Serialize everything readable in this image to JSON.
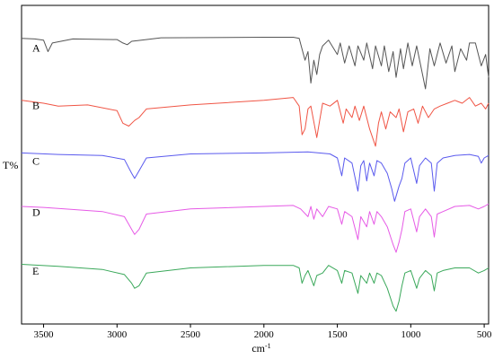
{
  "chart_data": {
    "type": "line",
    "title": "",
    "xlabel": "cm",
    "xlabel_superscript": "-1",
    "ylabel": "T%",
    "xlim": [
      3650,
      470
    ],
    "x_ticks": [
      3500,
      3000,
      2500,
      2000,
      1500,
      1000,
      500
    ],
    "grid": false,
    "series": [
      {
        "name": "A",
        "color": "#555555",
        "offset": 0.9,
        "scale": 0.18,
        "points": [
          [
            3650,
            0.98
          ],
          [
            3560,
            0.97
          ],
          [
            3500,
            0.95
          ],
          [
            3470,
            0.75
          ],
          [
            3440,
            0.9
          ],
          [
            3300,
            0.97
          ],
          [
            3000,
            0.96
          ],
          [
            2960,
            0.9
          ],
          [
            2930,
            0.87
          ],
          [
            2900,
            0.93
          ],
          [
            2860,
            0.94
          ],
          [
            2700,
            0.99
          ],
          [
            2000,
            1.0
          ],
          [
            1800,
            1.0
          ],
          [
            1760,
            0.98
          ],
          [
            1720,
            0.6
          ],
          [
            1700,
            0.75
          ],
          [
            1680,
            0.2
          ],
          [
            1660,
            0.6
          ],
          [
            1640,
            0.35
          ],
          [
            1620,
            0.7
          ],
          [
            1600,
            0.85
          ],
          [
            1560,
            0.95
          ],
          [
            1500,
            0.7
          ],
          [
            1480,
            0.9
          ],
          [
            1450,
            0.55
          ],
          [
            1420,
            0.85
          ],
          [
            1380,
            0.5
          ],
          [
            1360,
            0.85
          ],
          [
            1320,
            0.6
          ],
          [
            1300,
            0.9
          ],
          [
            1260,
            0.45
          ],
          [
            1240,
            0.85
          ],
          [
            1200,
            0.5
          ],
          [
            1180,
            0.85
          ],
          [
            1150,
            0.4
          ],
          [
            1120,
            0.75
          ],
          [
            1100,
            0.3
          ],
          [
            1070,
            0.8
          ],
          [
            1050,
            0.45
          ],
          [
            1020,
            0.9
          ],
          [
            990,
            0.5
          ],
          [
            960,
            0.85
          ],
          [
            900,
            0.1
          ],
          [
            870,
            0.8
          ],
          [
            840,
            0.5
          ],
          [
            800,
            0.9
          ],
          [
            760,
            0.55
          ],
          [
            720,
            0.85
          ],
          [
            700,
            0.4
          ],
          [
            660,
            0.8
          ],
          [
            620,
            0.6
          ],
          [
            600,
            0.9
          ],
          [
            560,
            0.9
          ],
          [
            520,
            0.5
          ],
          [
            490,
            0.7
          ],
          [
            470,
            0.3
          ]
        ]
      },
      {
        "name": "B",
        "color": "#f05545",
        "offset": 0.72,
        "scale": 0.18,
        "points": [
          [
            3650,
            0.9
          ],
          [
            3500,
            0.85
          ],
          [
            3400,
            0.8
          ],
          [
            3200,
            0.82
          ],
          [
            3000,
            0.72
          ],
          [
            2960,
            0.5
          ],
          [
            2920,
            0.45
          ],
          [
            2880,
            0.55
          ],
          [
            2850,
            0.6
          ],
          [
            2800,
            0.75
          ],
          [
            2500,
            0.82
          ],
          [
            2000,
            0.9
          ],
          [
            1800,
            0.95
          ],
          [
            1760,
            0.8
          ],
          [
            1740,
            0.3
          ],
          [
            1720,
            0.4
          ],
          [
            1700,
            0.75
          ],
          [
            1680,
            0.8
          ],
          [
            1640,
            0.25
          ],
          [
            1620,
            0.55
          ],
          [
            1600,
            0.85
          ],
          [
            1550,
            0.8
          ],
          [
            1500,
            0.9
          ],
          [
            1460,
            0.5
          ],
          [
            1440,
            0.75
          ],
          [
            1400,
            0.6
          ],
          [
            1380,
            0.8
          ],
          [
            1350,
            0.55
          ],
          [
            1320,
            0.8
          ],
          [
            1280,
            0.4
          ],
          [
            1240,
            0.1
          ],
          [
            1220,
            0.5
          ],
          [
            1200,
            0.7
          ],
          [
            1170,
            0.4
          ],
          [
            1140,
            0.7
          ],
          [
            1100,
            0.6
          ],
          [
            1080,
            0.75
          ],
          [
            1050,
            0.35
          ],
          [
            1020,
            0.7
          ],
          [
            980,
            0.75
          ],
          [
            950,
            0.5
          ],
          [
            920,
            0.8
          ],
          [
            880,
            0.6
          ],
          [
            840,
            0.75
          ],
          [
            800,
            0.8
          ],
          [
            750,
            0.85
          ],
          [
            700,
            0.9
          ],
          [
            650,
            0.85
          ],
          [
            600,
            0.95
          ],
          [
            560,
            0.8
          ],
          [
            520,
            0.85
          ],
          [
            490,
            0.75
          ],
          [
            470,
            0.85
          ]
        ]
      },
      {
        "name": "C",
        "color": "#5a5aee",
        "offset": 0.545,
        "scale": 0.16,
        "points": [
          [
            3650,
            0.95
          ],
          [
            3400,
            0.92
          ],
          [
            3100,
            0.9
          ],
          [
            2950,
            0.82
          ],
          [
            2900,
            0.55
          ],
          [
            2880,
            0.45
          ],
          [
            2860,
            0.55
          ],
          [
            2800,
            0.85
          ],
          [
            2500,
            0.93
          ],
          [
            2000,
            0.95
          ],
          [
            1700,
            0.97
          ],
          [
            1550,
            0.93
          ],
          [
            1500,
            0.85
          ],
          [
            1470,
            0.5
          ],
          [
            1450,
            0.85
          ],
          [
            1400,
            0.75
          ],
          [
            1360,
            0.2
          ],
          [
            1340,
            0.7
          ],
          [
            1320,
            0.8
          ],
          [
            1300,
            0.4
          ],
          [
            1280,
            0.75
          ],
          [
            1250,
            0.5
          ],
          [
            1230,
            0.8
          ],
          [
            1200,
            0.75
          ],
          [
            1160,
            0.55
          ],
          [
            1130,
            0.25
          ],
          [
            1110,
            0.0
          ],
          [
            1080,
            0.3
          ],
          [
            1060,
            0.45
          ],
          [
            1040,
            0.75
          ],
          [
            1000,
            0.85
          ],
          [
            960,
            0.35
          ],
          [
            940,
            0.7
          ],
          [
            900,
            0.85
          ],
          [
            860,
            0.75
          ],
          [
            840,
            0.2
          ],
          [
            820,
            0.75
          ],
          [
            780,
            0.85
          ],
          [
            700,
            0.9
          ],
          [
            600,
            0.92
          ],
          [
            540,
            0.88
          ],
          [
            520,
            0.75
          ],
          [
            500,
            0.85
          ],
          [
            470,
            0.9
          ]
        ]
      },
      {
        "name": "D",
        "color": "#e65ae6",
        "offset": 0.385,
        "scale": 0.16,
        "points": [
          [
            3650,
            0.9
          ],
          [
            3500,
            0.88
          ],
          [
            3400,
            0.86
          ],
          [
            3100,
            0.8
          ],
          [
            2950,
            0.7
          ],
          [
            2900,
            0.45
          ],
          [
            2880,
            0.35
          ],
          [
            2850,
            0.45
          ],
          [
            2800,
            0.75
          ],
          [
            2500,
            0.85
          ],
          [
            2000,
            0.9
          ],
          [
            1800,
            0.92
          ],
          [
            1750,
            0.85
          ],
          [
            1700,
            0.7
          ],
          [
            1680,
            0.9
          ],
          [
            1660,
            0.65
          ],
          [
            1640,
            0.85
          ],
          [
            1600,
            0.7
          ],
          [
            1560,
            0.9
          ],
          [
            1500,
            0.85
          ],
          [
            1470,
            0.55
          ],
          [
            1450,
            0.8
          ],
          [
            1400,
            0.7
          ],
          [
            1360,
            0.25
          ],
          [
            1340,
            0.7
          ],
          [
            1300,
            0.5
          ],
          [
            1280,
            0.8
          ],
          [
            1250,
            0.55
          ],
          [
            1230,
            0.8
          ],
          [
            1200,
            0.7
          ],
          [
            1160,
            0.5
          ],
          [
            1120,
            0.15
          ],
          [
            1100,
            0.0
          ],
          [
            1080,
            0.2
          ],
          [
            1060,
            0.45
          ],
          [
            1040,
            0.8
          ],
          [
            1000,
            0.85
          ],
          [
            960,
            0.4
          ],
          [
            940,
            0.7
          ],
          [
            900,
            0.85
          ],
          [
            860,
            0.7
          ],
          [
            840,
            0.3
          ],
          [
            820,
            0.75
          ],
          [
            780,
            0.8
          ],
          [
            700,
            0.9
          ],
          [
            600,
            0.92
          ],
          [
            540,
            0.85
          ],
          [
            500,
            0.9
          ],
          [
            470,
            0.95
          ]
        ]
      },
      {
        "name": "E",
        "color": "#3aa85a",
        "offset": 0.2,
        "scale": 0.16,
        "points": [
          [
            3650,
            0.92
          ],
          [
            3400,
            0.88
          ],
          [
            3100,
            0.82
          ],
          [
            2950,
            0.72
          ],
          [
            2900,
            0.55
          ],
          [
            2880,
            0.45
          ],
          [
            2850,
            0.5
          ],
          [
            2800,
            0.75
          ],
          [
            2500,
            0.85
          ],
          [
            2000,
            0.9
          ],
          [
            1800,
            0.9
          ],
          [
            1760,
            0.85
          ],
          [
            1740,
            0.55
          ],
          [
            1720,
            0.7
          ],
          [
            1700,
            0.8
          ],
          [
            1660,
            0.5
          ],
          [
            1640,
            0.7
          ],
          [
            1600,
            0.75
          ],
          [
            1560,
            0.9
          ],
          [
            1500,
            0.8
          ],
          [
            1470,
            0.55
          ],
          [
            1450,
            0.8
          ],
          [
            1400,
            0.75
          ],
          [
            1360,
            0.35
          ],
          [
            1340,
            0.7
          ],
          [
            1300,
            0.55
          ],
          [
            1280,
            0.75
          ],
          [
            1250,
            0.55
          ],
          [
            1230,
            0.75
          ],
          [
            1200,
            0.7
          ],
          [
            1160,
            0.45
          ],
          [
            1120,
            0.1
          ],
          [
            1100,
            0.0
          ],
          [
            1080,
            0.2
          ],
          [
            1060,
            0.5
          ],
          [
            1040,
            0.75
          ],
          [
            1000,
            0.8
          ],
          [
            960,
            0.45
          ],
          [
            940,
            0.65
          ],
          [
            900,
            0.8
          ],
          [
            860,
            0.7
          ],
          [
            840,
            0.4
          ],
          [
            820,
            0.75
          ],
          [
            780,
            0.8
          ],
          [
            700,
            0.85
          ],
          [
            600,
            0.85
          ],
          [
            540,
            0.75
          ],
          [
            500,
            0.8
          ],
          [
            470,
            0.85
          ]
        ]
      }
    ]
  }
}
